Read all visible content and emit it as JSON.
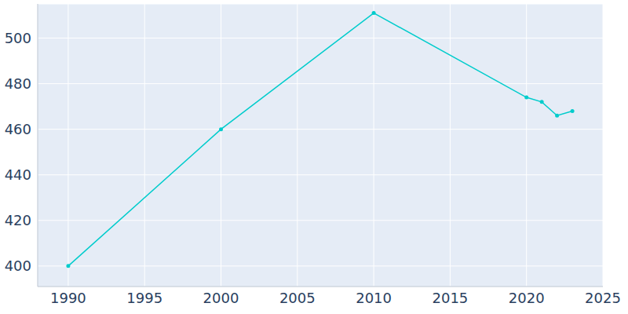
{
  "chart_data": {
    "type": "line",
    "x": [
      1990,
      2000,
      2010,
      2020,
      2021,
      2022,
      2023
    ],
    "values": [
      400,
      460,
      511,
      474,
      472,
      466,
      468
    ],
    "color": "#00cccc",
    "marker": "circle",
    "line_style": "solid",
    "xlim": [
      1988,
      2025
    ],
    "xticks": [
      1990,
      1995,
      2000,
      2005,
      2010,
      2015,
      2020,
      2025
    ],
    "ylim": [
      391,
      515
    ],
    "yticks": [
      400,
      420,
      440,
      460,
      480,
      500
    ],
    "grid": true
  }
}
